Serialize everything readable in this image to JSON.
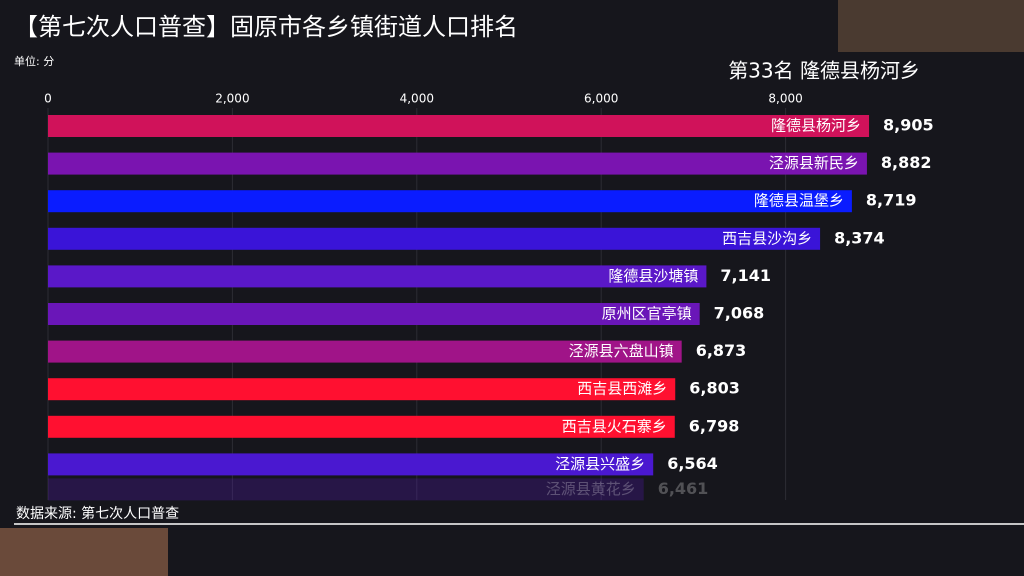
{
  "chart_data": {
    "type": "bar",
    "orientation": "horizontal",
    "title": "【第七次人口普查】固原市各乡镇街道人口排名",
    "unit_label": "单位: 分",
    "subtitle": "第33名 隆德县杨河乡",
    "source": "数据来源: 第七次人口普查",
    "categories": [
      "隆德县杨河乡",
      "泾源县新民乡",
      "隆德县温堡乡",
      "西吉县沙沟乡",
      "隆德县沙塘镇",
      "原州区官亭镇",
      "泾源县六盘山镇",
      "西吉县西滩乡",
      "西吉县火石寨乡",
      "泾源县兴盛乡",
      "泾源县黄花乡"
    ],
    "values": [
      8905,
      8882,
      8719,
      8374,
      7141,
      7068,
      6873,
      6803,
      6798,
      6564,
      6461
    ],
    "value_labels": [
      "8,905",
      "8,882",
      "8,719",
      "8,374",
      "7,141",
      "7,068",
      "6,873",
      "6,803",
      "6,798",
      "6,564",
      "6,461"
    ],
    "colors": [
      "#d0125a",
      "#7a14b0",
      "#0a1cff",
      "#3a14d8",
      "#5a18c8",
      "#6a16b8",
      "#a01488",
      "#ff1030",
      "#ff1030",
      "#4a18d0",
      "#5a18c8"
    ],
    "xlim": [
      0,
      10000
    ],
    "xticks": [
      0,
      {
        "value": 2000,
        "label": "2,000"
      },
      {
        "value": 4000,
        "label": "4,000"
      },
      {
        "value": 6000,
        "label": "6,000"
      },
      {
        "value": 8000,
        "label": "8,000"
      }
    ],
    "grid": true
  }
}
